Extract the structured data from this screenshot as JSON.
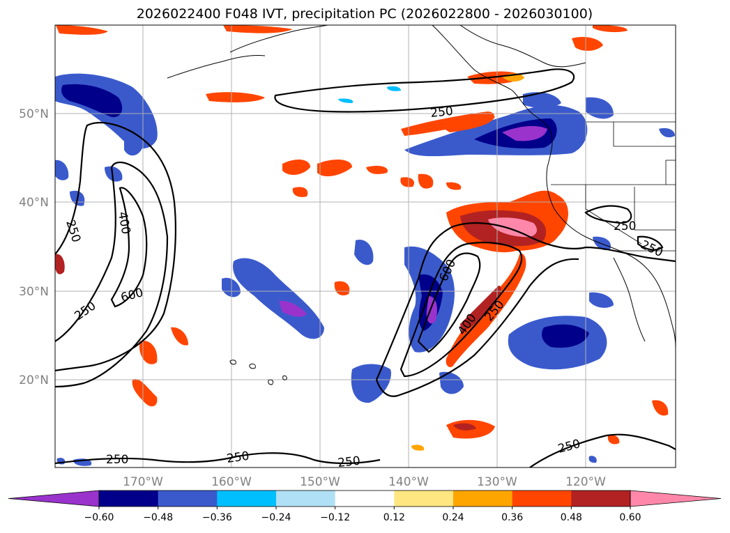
{
  "title": "2026022400 F048 IVT, precipitation PC (2026022800 - 2026030100)",
  "lat_labels": [
    "50°N",
    "40°N",
    "30°N",
    "20°N"
  ],
  "lon_labels": [
    "170°W",
    "160°W",
    "150°W",
    "140°W",
    "130°W",
    "120°W"
  ],
  "colorbar": {
    "ticks": [
      "−0.60",
      "−0.48",
      "−0.36",
      "−0.24",
      "−0.12",
      "0.12",
      "0.24",
      "0.36",
      "0.48",
      "0.60"
    ],
    "colors": [
      "#9933cc",
      "#00008b",
      "#3a5acc",
      "#00bfff",
      "#b0e0f5",
      "#ffffff",
      "#ffe680",
      "#ffa500",
      "#ff4500",
      "#b22222",
      "#ff88aa"
    ]
  },
  "ivt_contour_labels": [
    "250",
    "400",
    "600"
  ],
  "contour_text": {
    "c250": "250",
    "c400": "400",
    "c600": "600"
  }
}
